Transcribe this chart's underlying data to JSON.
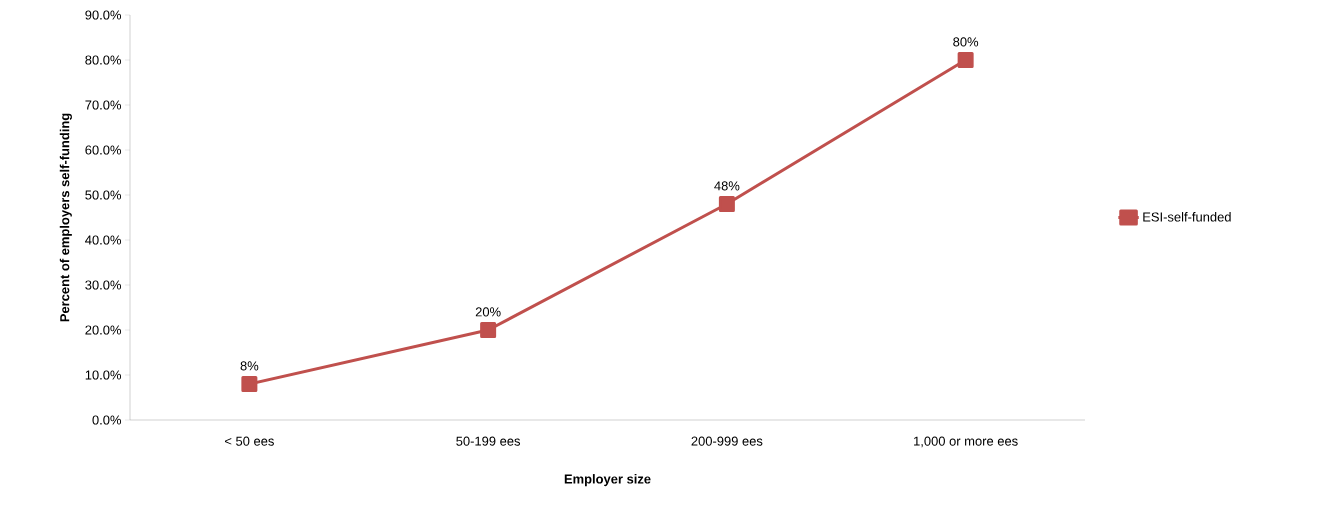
{
  "chart_data": {
    "type": "line",
    "xlabel": "Employer size",
    "ylabel": "Percent of employers self-funding",
    "categories": [
      "< 50 ees",
      "50-199 ees",
      "200-999 ees",
      "1,000 or more ees"
    ],
    "series": [
      {
        "name": "ESI-self-funded",
        "color": "#c0504d",
        "values": [
          8,
          20,
          48,
          80
        ],
        "value_labels": [
          "8%",
          "20%",
          "48%",
          "80%"
        ]
      }
    ],
    "ylim": [
      0,
      90
    ],
    "yticks": [
      {
        "value": 0,
        "label": "0.0%"
      },
      {
        "value": 10,
        "label": "10.0%"
      },
      {
        "value": 20,
        "label": "20.0%"
      },
      {
        "value": 30,
        "label": "30.0%"
      },
      {
        "value": 40,
        "label": "40.0%"
      },
      {
        "value": 50,
        "label": "50.0%"
      },
      {
        "value": 60,
        "label": "60.0%"
      },
      {
        "value": 70,
        "label": "70.0%"
      },
      {
        "value": 80,
        "label": "80.0%"
      },
      {
        "value": 90,
        "label": "90.0%"
      }
    ],
    "grid": false,
    "legend": "right",
    "marker": "square",
    "line_style": "solid"
  }
}
